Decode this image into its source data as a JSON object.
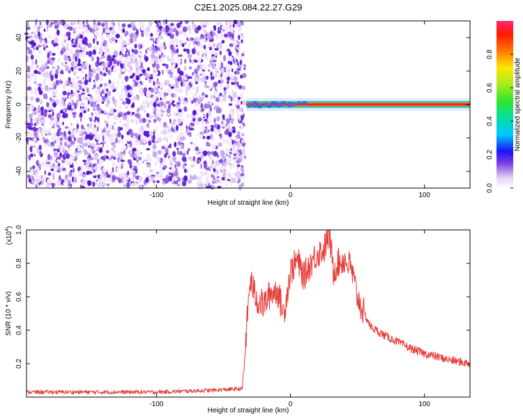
{
  "title": "C2E1.2025.084.22.27.G29",
  "chart_data": [
    {
      "type": "heatmap",
      "xlabel": "Height of straight line (km)",
      "ylabel": "Frequency (Hz)",
      "xlim": [
        -197,
        134
      ],
      "ylim": [
        -50,
        50
      ],
      "xticks": [
        -100,
        0,
        100
      ],
      "yticks": [
        -40,
        -20,
        0,
        20,
        40
      ],
      "colorbar": {
        "label": "Normalized spectral amplitude",
        "range": [
          0.0,
          1.0
        ],
        "ticks": [
          0.0,
          0.2,
          0.4,
          0.6,
          0.8
        ],
        "tick_labels": [
          "0.0",
          "0.2",
          "0.4",
          "0.6",
          "0.8"
        ]
      },
      "noise_region_x": [
        -197,
        -33
      ],
      "signal": {
        "x_start": -33,
        "x_end": 134,
        "frequency_hz": 0,
        "amplitude": 1.0
      }
    },
    {
      "type": "line",
      "xlabel": "Height of straight line (km)",
      "ylabel": "SNR (10 * v/v)",
      "y_scale_label": "(x10",
      "y_scale_exponent": "4",
      "xlim": [
        -197,
        134
      ],
      "ylim": [
        0,
        1.0
      ],
      "xticks": [
        -100,
        0,
        100
      ],
      "yticks": [
        0.2,
        0.4,
        0.6,
        0.8,
        1.0
      ],
      "ytick_labels": [
        "0.2",
        "0.4",
        "0.6",
        "0.8",
        "1.0"
      ],
      "series": [
        {
          "color": "#e53935",
          "x": [
            -197,
            -150,
            -100,
            -60,
            -36,
            -34,
            -32,
            -30,
            -25,
            -20,
            -15,
            -10,
            -5,
            0,
            5,
            10,
            15,
            20,
            25,
            29,
            32,
            35,
            40,
            45,
            50,
            55,
            60,
            70,
            80,
            90,
            100,
            110,
            120,
            134
          ],
          "y": [
            0.03,
            0.03,
            0.03,
            0.04,
            0.05,
            0.25,
            0.5,
            0.7,
            0.58,
            0.55,
            0.62,
            0.64,
            0.5,
            0.75,
            0.82,
            0.72,
            0.8,
            0.86,
            0.88,
            0.98,
            0.75,
            0.8,
            0.82,
            0.78,
            0.6,
            0.5,
            0.42,
            0.37,
            0.33,
            0.29,
            0.26,
            0.24,
            0.22,
            0.2
          ]
        }
      ]
    }
  ]
}
